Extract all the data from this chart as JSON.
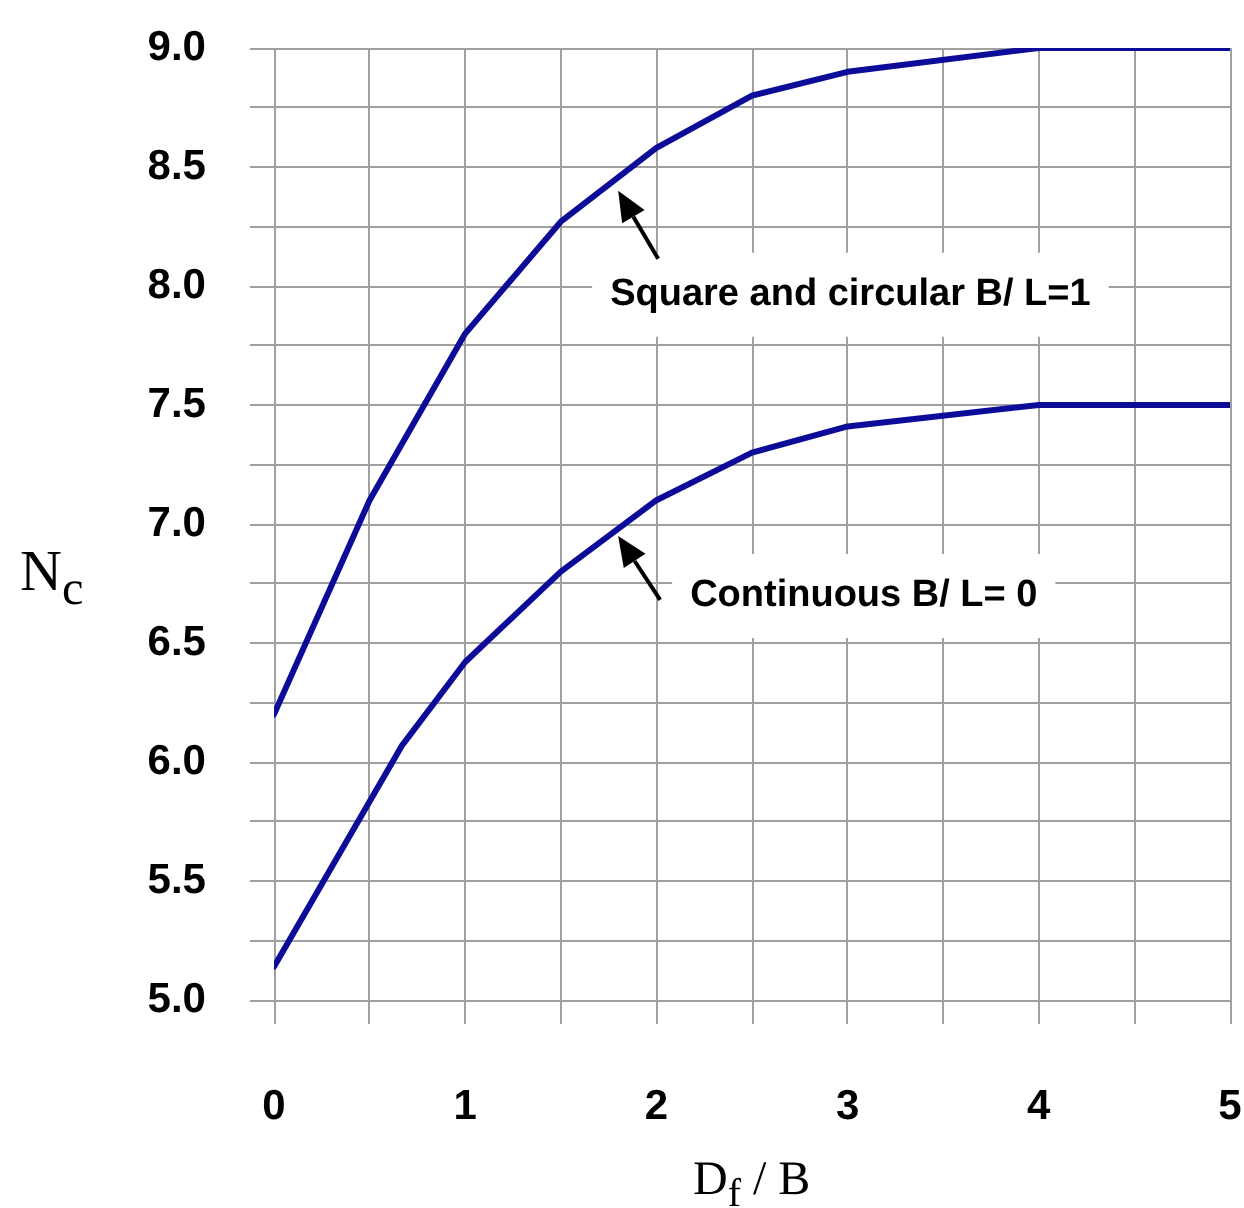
{
  "chart_data": {
    "type": "line",
    "xlabel": "D$_{f}$ / B",
    "ylabel": "N$_{c}$",
    "series": [
      {
        "color": "#0c0c99",
        "x": [
          0,
          0.5,
          1,
          1.5,
          2,
          2.5,
          3,
          4,
          5
        ],
        "values": [
          6.2,
          7.1,
          7.8,
          8.27,
          8.58,
          8.8,
          8.9,
          9.0,
          9.0
        ]
      },
      {
        "color": "#0c0c99",
        "x": [
          0,
          0.67,
          1,
          1.5,
          2,
          2.5,
          3,
          4,
          5
        ],
        "values": [
          5.14,
          6.07,
          6.42,
          6.8,
          7.1,
          7.3,
          7.41,
          7.5,
          7.5
        ]
      }
    ],
    "xlim": [
      0,
      5
    ],
    "xticks": [
      0,
      {
        "value": 0.5,
        "label": null
      },
      1,
      {
        "value": 1.5,
        "label": null
      },
      2,
      {
        "value": 2.5,
        "label": null
      },
      3,
      {
        "value": 3.5,
        "label": null
      },
      4,
      {
        "value": 4.5,
        "label": null
      },
      5
    ],
    "ylim": [
      5,
      9
    ],
    "yticks": [
      {
        "value": 5,
        "label": "5.0"
      },
      {
        "value": 5.25,
        "label": null
      },
      {
        "value": 5.5,
        "label": "5.5"
      },
      {
        "value": 5.75,
        "label": null
      },
      {
        "value": 6,
        "label": "6.0"
      },
      {
        "value": 6.25,
        "label": null
      },
      {
        "value": 6.5,
        "label": "6.5"
      },
      {
        "value": 6.75,
        "label": null
      },
      {
        "value": 7,
        "label": "7.0"
      },
      {
        "value": 7.25,
        "label": null
      },
      {
        "value": 7.5,
        "label": "7.5"
      },
      {
        "value": 7.75,
        "label": null
      },
      {
        "value": 8,
        "label": "8.0"
      },
      {
        "value": 8.25,
        "label": null
      },
      {
        "value": 8.5,
        "label": "8.5"
      },
      {
        "value": 8.75,
        "label": null
      },
      {
        "value": 9,
        "label": "9.0"
      }
    ],
    "annotations": [
      {
        "text": "Square and circular B/ L=1",
        "x": 1.8,
        "y": 8.4
      },
      {
        "text": "Continuous B/ L= 0",
        "x": 1.8,
        "y": 6.95
      }
    ],
    "grid": true,
    "marker": "none",
    "line_style": "solid"
  }
}
